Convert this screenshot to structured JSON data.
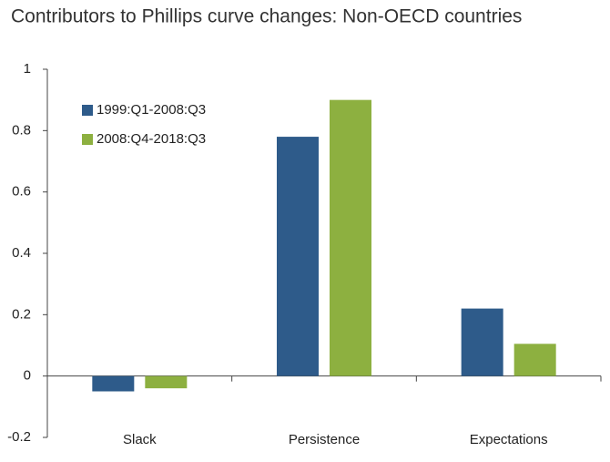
{
  "chart_data": {
    "type": "bar",
    "title": "Contributors to Phillips curve changes: Non-OECD countries",
    "categories": [
      "Slack",
      "Persistence",
      "Expectations"
    ],
    "series": [
      {
        "name": "1999:Q1-2008:Q3",
        "color": "#2e5b8a",
        "values": [
          -0.05,
          0.78,
          0.22
        ]
      },
      {
        "name": "2008:Q4-2018:Q3",
        "color": "#8db040",
        "values": [
          -0.04,
          0.9,
          0.105
        ]
      }
    ],
    "ylim": [
      -0.2,
      1
    ],
    "yticks": [
      -0.2,
      0,
      0.2,
      0.4,
      0.6,
      0.8,
      1
    ],
    "legend": "upper left"
  }
}
